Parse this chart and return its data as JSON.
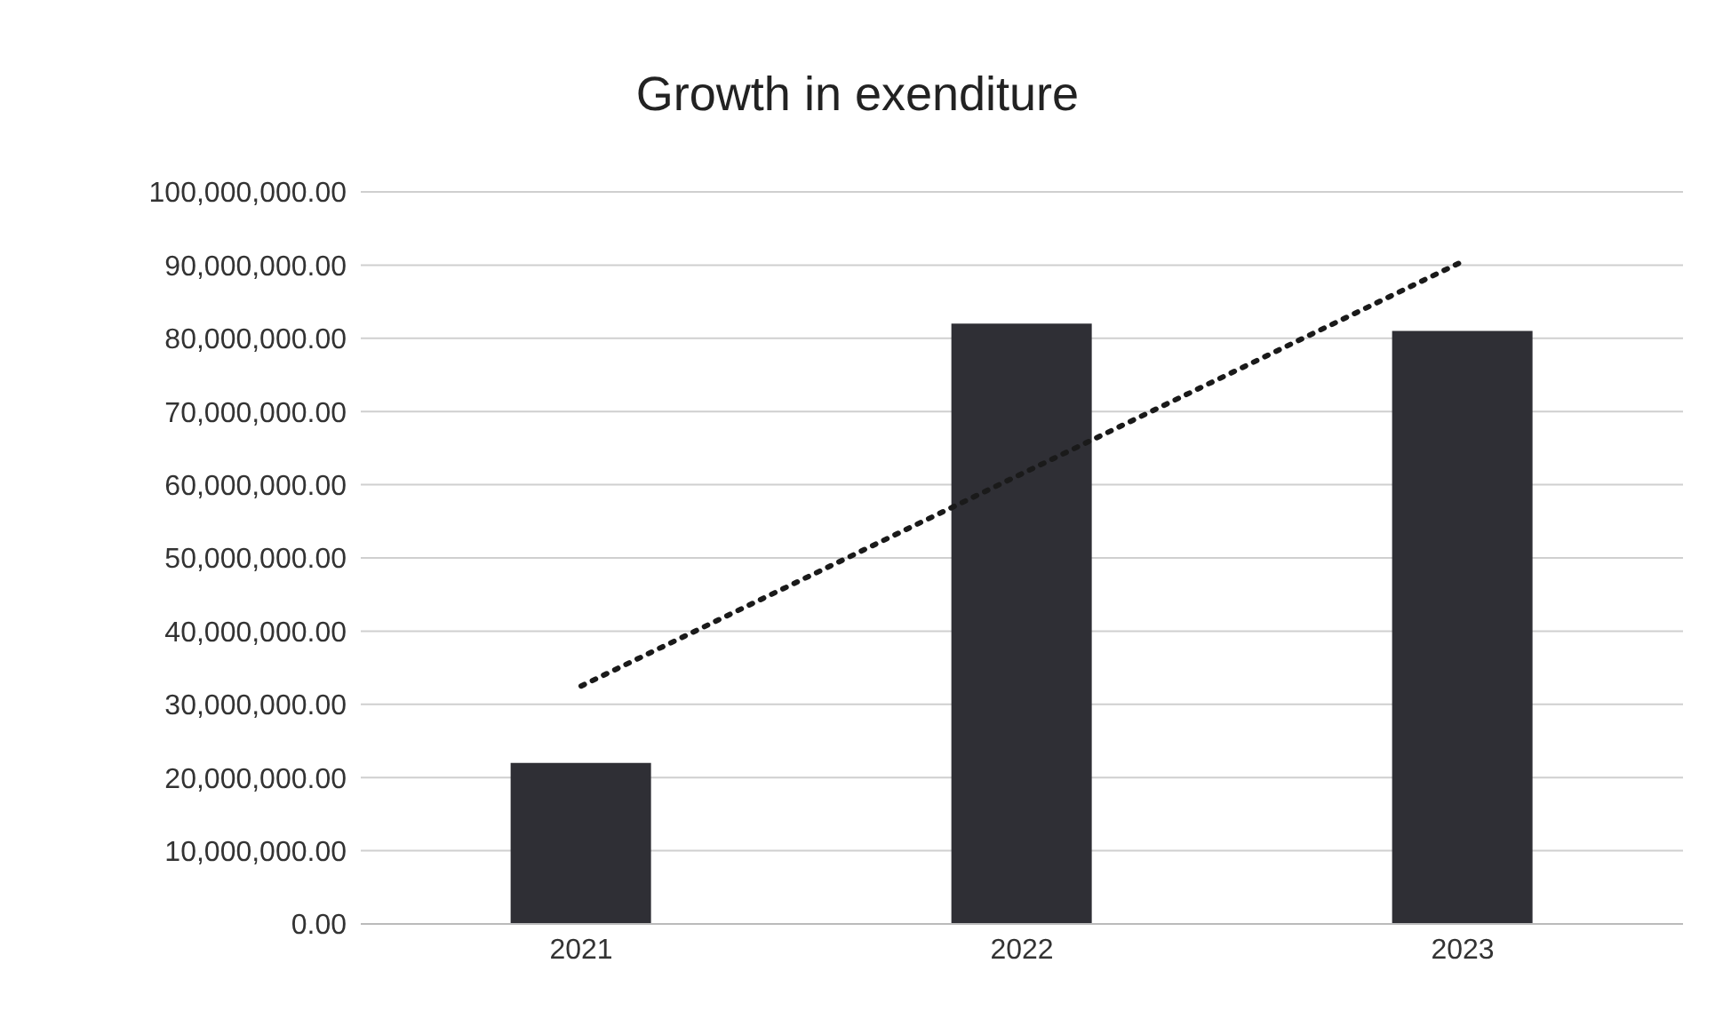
{
  "chart_data": {
    "type": "bar",
    "title": "Growth in exenditure",
    "categories": [
      "2021",
      "2022",
      "2023"
    ],
    "series": [
      {
        "color": "#2f2f35",
        "values": [
          22000000,
          82000000,
          81000000
        ]
      },
      {
        "type": "line",
        "color": "#1a1a1a",
        "values": [
          32500000,
          61500000,
          90500000
        ],
        "line_style": "dotted",
        "marker": "none"
      }
    ],
    "ylim": [
      0,
      100000000
    ],
    "yticks": [
      {
        "value": 0,
        "label": "0.00"
      },
      {
        "value": 10000000,
        "label": "10,000,000.00"
      },
      {
        "value": 20000000,
        "label": "20,000,000.00"
      },
      {
        "value": 30000000,
        "label": "30,000,000.00"
      },
      {
        "value": 40000000,
        "label": "40,000,000.00"
      },
      {
        "value": 50000000,
        "label": "50,000,000.00"
      },
      {
        "value": 60000000,
        "label": "60,000,000.00"
      },
      {
        "value": 70000000,
        "label": "70,000,000.00"
      },
      {
        "value": 80000000,
        "label": "80,000,000.00"
      },
      {
        "value": 90000000,
        "label": "90,000,000.00"
      },
      {
        "value": 100000000,
        "label": "100,000,000.00"
      }
    ],
    "grid": "y"
  }
}
